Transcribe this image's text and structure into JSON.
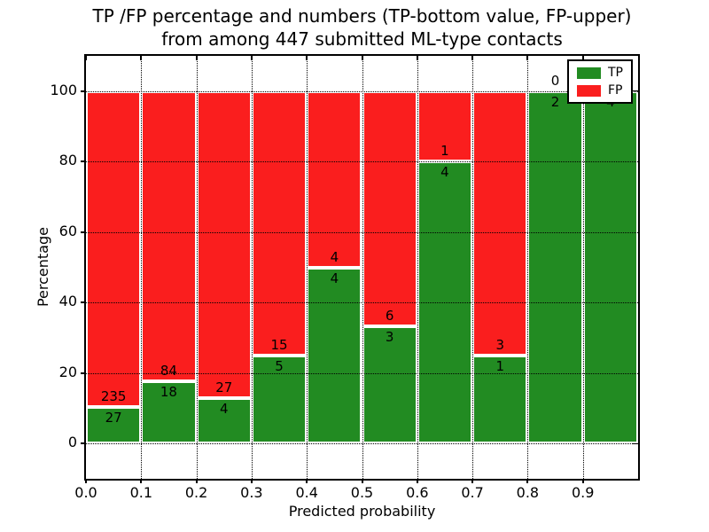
{
  "figure": {
    "title_line1": "TP /FP percentage and numbers (TP-bottom value, FP-upper)",
    "title_line2": "from among 447 submitted ML-type contacts"
  },
  "chart_data": {
    "type": "bar",
    "variant": "stacked-percentage-histogram",
    "title": "TP /FP percentage and numbers (TP-bottom value, FP-upper) from among 447 submitted ML-type contacts",
    "xlabel": "Predicted probability",
    "ylabel": "Percentage",
    "xlim": [
      0.0,
      1.0
    ],
    "ylim": [
      -10,
      110
    ],
    "xticks": [
      "0.0",
      "0.1",
      "0.2",
      "0.3",
      "0.4",
      "0.5",
      "0.6",
      "0.7",
      "0.8",
      "0.9"
    ],
    "yticks": [
      0,
      20,
      40,
      60,
      80,
      100
    ],
    "grid": "dotted black, drawn above bars",
    "bin_width": 0.1,
    "total_contacts": 447,
    "legend": {
      "position": "upper right",
      "entries": [
        {
          "label": "TP",
          "color": "#228b22"
        },
        {
          "label": "FP",
          "color": "#fa1e1e"
        }
      ]
    },
    "bins": [
      {
        "x_start": 0.0,
        "tp": 27,
        "fp": 235,
        "tp_percent": 10.3
      },
      {
        "x_start": 0.1,
        "tp": 18,
        "fp": 84,
        "tp_percent": 17.6
      },
      {
        "x_start": 0.2,
        "tp": 4,
        "fp": 27,
        "tp_percent": 12.9
      },
      {
        "x_start": 0.3,
        "tp": 5,
        "fp": 15,
        "tp_percent": 25.0
      },
      {
        "x_start": 0.4,
        "tp": 4,
        "fp": 4,
        "tp_percent": 50.0
      },
      {
        "x_start": 0.5,
        "tp": 3,
        "fp": 6,
        "tp_percent": 33.3
      },
      {
        "x_start": 0.6,
        "tp": 4,
        "fp": 1,
        "tp_percent": 80.0
      },
      {
        "x_start": 0.7,
        "tp": 1,
        "fp": 3,
        "tp_percent": 25.0
      },
      {
        "x_start": 0.8,
        "tp": 2,
        "fp": 0,
        "tp_percent": 100.0
      },
      {
        "x_start": 0.9,
        "tp": 4,
        "fp": 0,
        "tp_percent": 100.0,
        "fp_label_covered_by_legend": true
      }
    ]
  }
}
